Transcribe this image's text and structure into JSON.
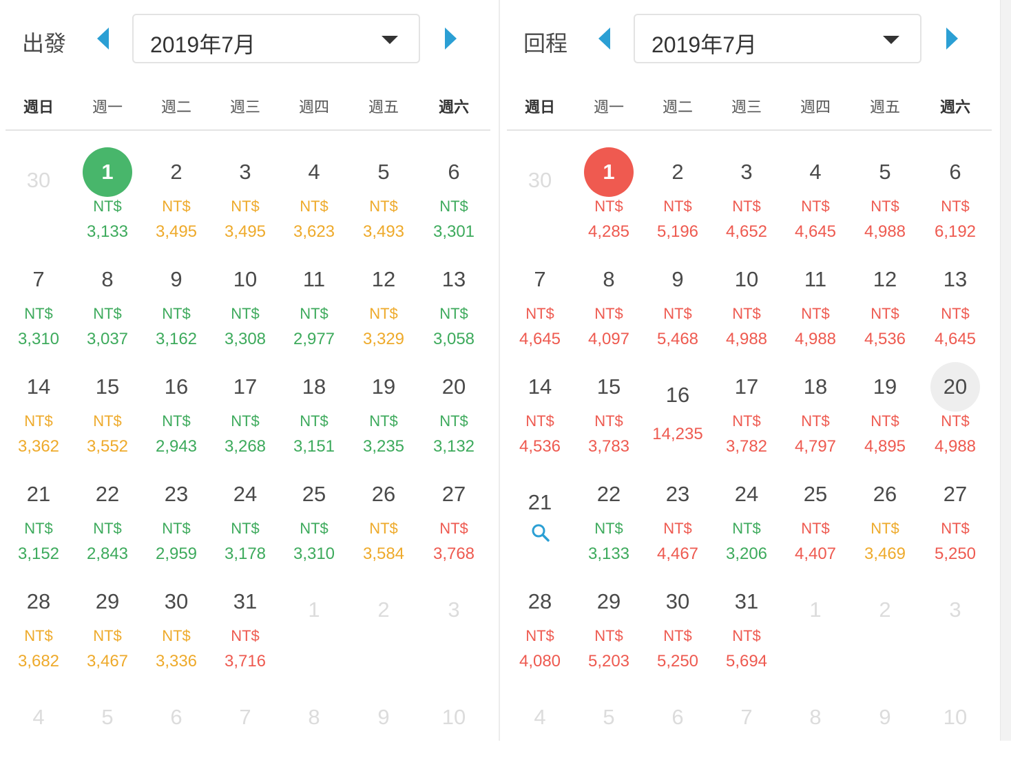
{
  "colors": {
    "green": "#3daa5c",
    "yellow": "#eeaa2b",
    "red": "#ee5a50",
    "search": "#2b9fd4",
    "arrow": "#2b9fd4"
  },
  "weekdays": [
    "週日",
    "週一",
    "週二",
    "週三",
    "週四",
    "週五",
    "週六"
  ],
  "departure": {
    "title": "出發",
    "month": "2019年7月",
    "selected_day": "1",
    "weeks": [
      [
        {
          "day": "30",
          "muted": true
        },
        {
          "day": "1",
          "cur": "NT$",
          "amount": "3,133",
          "level": "green",
          "selected": true
        },
        {
          "day": "2",
          "cur": "NT$",
          "amount": "3,495",
          "level": "yellow"
        },
        {
          "day": "3",
          "cur": "NT$",
          "amount": "3,495",
          "level": "yellow"
        },
        {
          "day": "4",
          "cur": "NT$",
          "amount": "3,623",
          "level": "yellow"
        },
        {
          "day": "5",
          "cur": "NT$",
          "amount": "3,493",
          "level": "yellow"
        },
        {
          "day": "6",
          "cur": "NT$",
          "amount": "3,301",
          "level": "green"
        }
      ],
      [
        {
          "day": "7",
          "cur": "NT$",
          "amount": "3,310",
          "level": "green"
        },
        {
          "day": "8",
          "cur": "NT$",
          "amount": "3,037",
          "level": "green"
        },
        {
          "day": "9",
          "cur": "NT$",
          "amount": "3,162",
          "level": "green"
        },
        {
          "day": "10",
          "cur": "NT$",
          "amount": "3,308",
          "level": "green"
        },
        {
          "day": "11",
          "cur": "NT$",
          "amount": "2,977",
          "level": "green"
        },
        {
          "day": "12",
          "cur": "NT$",
          "amount": "3,329",
          "level": "yellow"
        },
        {
          "day": "13",
          "cur": "NT$",
          "amount": "3,058",
          "level": "green"
        }
      ],
      [
        {
          "day": "14",
          "cur": "NT$",
          "amount": "3,362",
          "level": "yellow"
        },
        {
          "day": "15",
          "cur": "NT$",
          "amount": "3,552",
          "level": "yellow"
        },
        {
          "day": "16",
          "cur": "NT$",
          "amount": "2,943",
          "level": "green"
        },
        {
          "day": "17",
          "cur": "NT$",
          "amount": "3,268",
          "level": "green"
        },
        {
          "day": "18",
          "cur": "NT$",
          "amount": "3,151",
          "level": "green"
        },
        {
          "day": "19",
          "cur": "NT$",
          "amount": "3,235",
          "level": "green"
        },
        {
          "day": "20",
          "cur": "NT$",
          "amount": "3,132",
          "level": "green"
        }
      ],
      [
        {
          "day": "21",
          "cur": "NT$",
          "amount": "3,152",
          "level": "green"
        },
        {
          "day": "22",
          "cur": "NT$",
          "amount": "2,843",
          "level": "green"
        },
        {
          "day": "23",
          "cur": "NT$",
          "amount": "2,959",
          "level": "green"
        },
        {
          "day": "24",
          "cur": "NT$",
          "amount": "3,178",
          "level": "green"
        },
        {
          "day": "25",
          "cur": "NT$",
          "amount": "3,310",
          "level": "green"
        },
        {
          "day": "26",
          "cur": "NT$",
          "amount": "3,584",
          "level": "yellow"
        },
        {
          "day": "27",
          "cur": "NT$",
          "amount": "3,768",
          "level": "red"
        }
      ],
      [
        {
          "day": "28",
          "cur": "NT$",
          "amount": "3,682",
          "level": "yellow"
        },
        {
          "day": "29",
          "cur": "NT$",
          "amount": "3,467",
          "level": "yellow"
        },
        {
          "day": "30",
          "cur": "NT$",
          "amount": "3,336",
          "level": "yellow"
        },
        {
          "day": "31",
          "cur": "NT$",
          "amount": "3,716",
          "level": "red"
        },
        {
          "day": "1",
          "muted": true
        },
        {
          "day": "2",
          "muted": true
        },
        {
          "day": "3",
          "muted": true
        }
      ],
      [
        {
          "day": "4",
          "muted": true
        },
        {
          "day": "5",
          "muted": true
        },
        {
          "day": "6",
          "muted": true
        },
        {
          "day": "7",
          "muted": true
        },
        {
          "day": "8",
          "muted": true
        },
        {
          "day": "9",
          "muted": true
        },
        {
          "day": "10",
          "muted": true
        }
      ]
    ]
  },
  "return": {
    "title": "回程",
    "month": "2019年7月",
    "selected_day": "1",
    "weeks": [
      [
        {
          "day": "30",
          "muted": true
        },
        {
          "day": "1",
          "cur": "NT$",
          "amount": "4,285",
          "level": "red",
          "selected": true
        },
        {
          "day": "2",
          "cur": "NT$",
          "amount": "5,196",
          "level": "red"
        },
        {
          "day": "3",
          "cur": "NT$",
          "amount": "4,652",
          "level": "red"
        },
        {
          "day": "4",
          "cur": "NT$",
          "amount": "4,645",
          "level": "red"
        },
        {
          "day": "5",
          "cur": "NT$",
          "amount": "4,988",
          "level": "red"
        },
        {
          "day": "6",
          "cur": "NT$",
          "amount": "6,192",
          "level": "red"
        }
      ],
      [
        {
          "day": "7",
          "cur": "NT$",
          "amount": "4,645",
          "level": "red"
        },
        {
          "day": "8",
          "cur": "NT$",
          "amount": "4,097",
          "level": "red"
        },
        {
          "day": "9",
          "cur": "NT$",
          "amount": "5,468",
          "level": "red"
        },
        {
          "day": "10",
          "cur": "NT$",
          "amount": "4,988",
          "level": "red"
        },
        {
          "day": "11",
          "cur": "NT$",
          "amount": "4,988",
          "level": "red"
        },
        {
          "day": "12",
          "cur": "NT$",
          "amount": "4,536",
          "level": "red"
        },
        {
          "day": "13",
          "cur": "NT$",
          "amount": "4,645",
          "level": "red"
        }
      ],
      [
        {
          "day": "14",
          "cur": "NT$",
          "amount": "4,536",
          "level": "red"
        },
        {
          "day": "15",
          "cur": "NT$",
          "amount": "3,783",
          "level": "red"
        },
        {
          "day": "16",
          "amount": "14,235",
          "level": "red",
          "single": true
        },
        {
          "day": "17",
          "cur": "NT$",
          "amount": "3,782",
          "level": "red"
        },
        {
          "day": "18",
          "cur": "NT$",
          "amount": "4,797",
          "level": "red"
        },
        {
          "day": "19",
          "cur": "NT$",
          "amount": "4,895",
          "level": "red"
        },
        {
          "day": "20",
          "cur": "NT$",
          "amount": "4,988",
          "level": "red",
          "hover": true
        }
      ],
      [
        {
          "day": "21",
          "search": true
        },
        {
          "day": "22",
          "cur": "NT$",
          "amount": "3,133",
          "level": "green"
        },
        {
          "day": "23",
          "cur": "NT$",
          "amount": "4,467",
          "level": "red"
        },
        {
          "day": "24",
          "cur": "NT$",
          "amount": "3,206",
          "level": "green"
        },
        {
          "day": "25",
          "cur": "NT$",
          "amount": "4,407",
          "level": "red"
        },
        {
          "day": "26",
          "cur": "NT$",
          "amount": "3,469",
          "level": "yellow"
        },
        {
          "day": "27",
          "cur": "NT$",
          "amount": "5,250",
          "level": "red"
        }
      ],
      [
        {
          "day": "28",
          "cur": "NT$",
          "amount": "4,080",
          "level": "red"
        },
        {
          "day": "29",
          "cur": "NT$",
          "amount": "5,203",
          "level": "red"
        },
        {
          "day": "30",
          "cur": "NT$",
          "amount": "5,250",
          "level": "red"
        },
        {
          "day": "31",
          "cur": "NT$",
          "amount": "5,694",
          "level": "red"
        },
        {
          "day": "1",
          "muted": true
        },
        {
          "day": "2",
          "muted": true
        },
        {
          "day": "3",
          "muted": true
        }
      ],
      [
        {
          "day": "4",
          "muted": true
        },
        {
          "day": "5",
          "muted": true
        },
        {
          "day": "6",
          "muted": true
        },
        {
          "day": "7",
          "muted": true
        },
        {
          "day": "8",
          "muted": true
        },
        {
          "day": "9",
          "muted": true
        },
        {
          "day": "10",
          "muted": true
        }
      ]
    ]
  },
  "icons": {
    "prev": "chevron-left-icon",
    "next": "chevron-right-icon",
    "dropdown": "caret-down-icon",
    "search": "search-icon"
  }
}
